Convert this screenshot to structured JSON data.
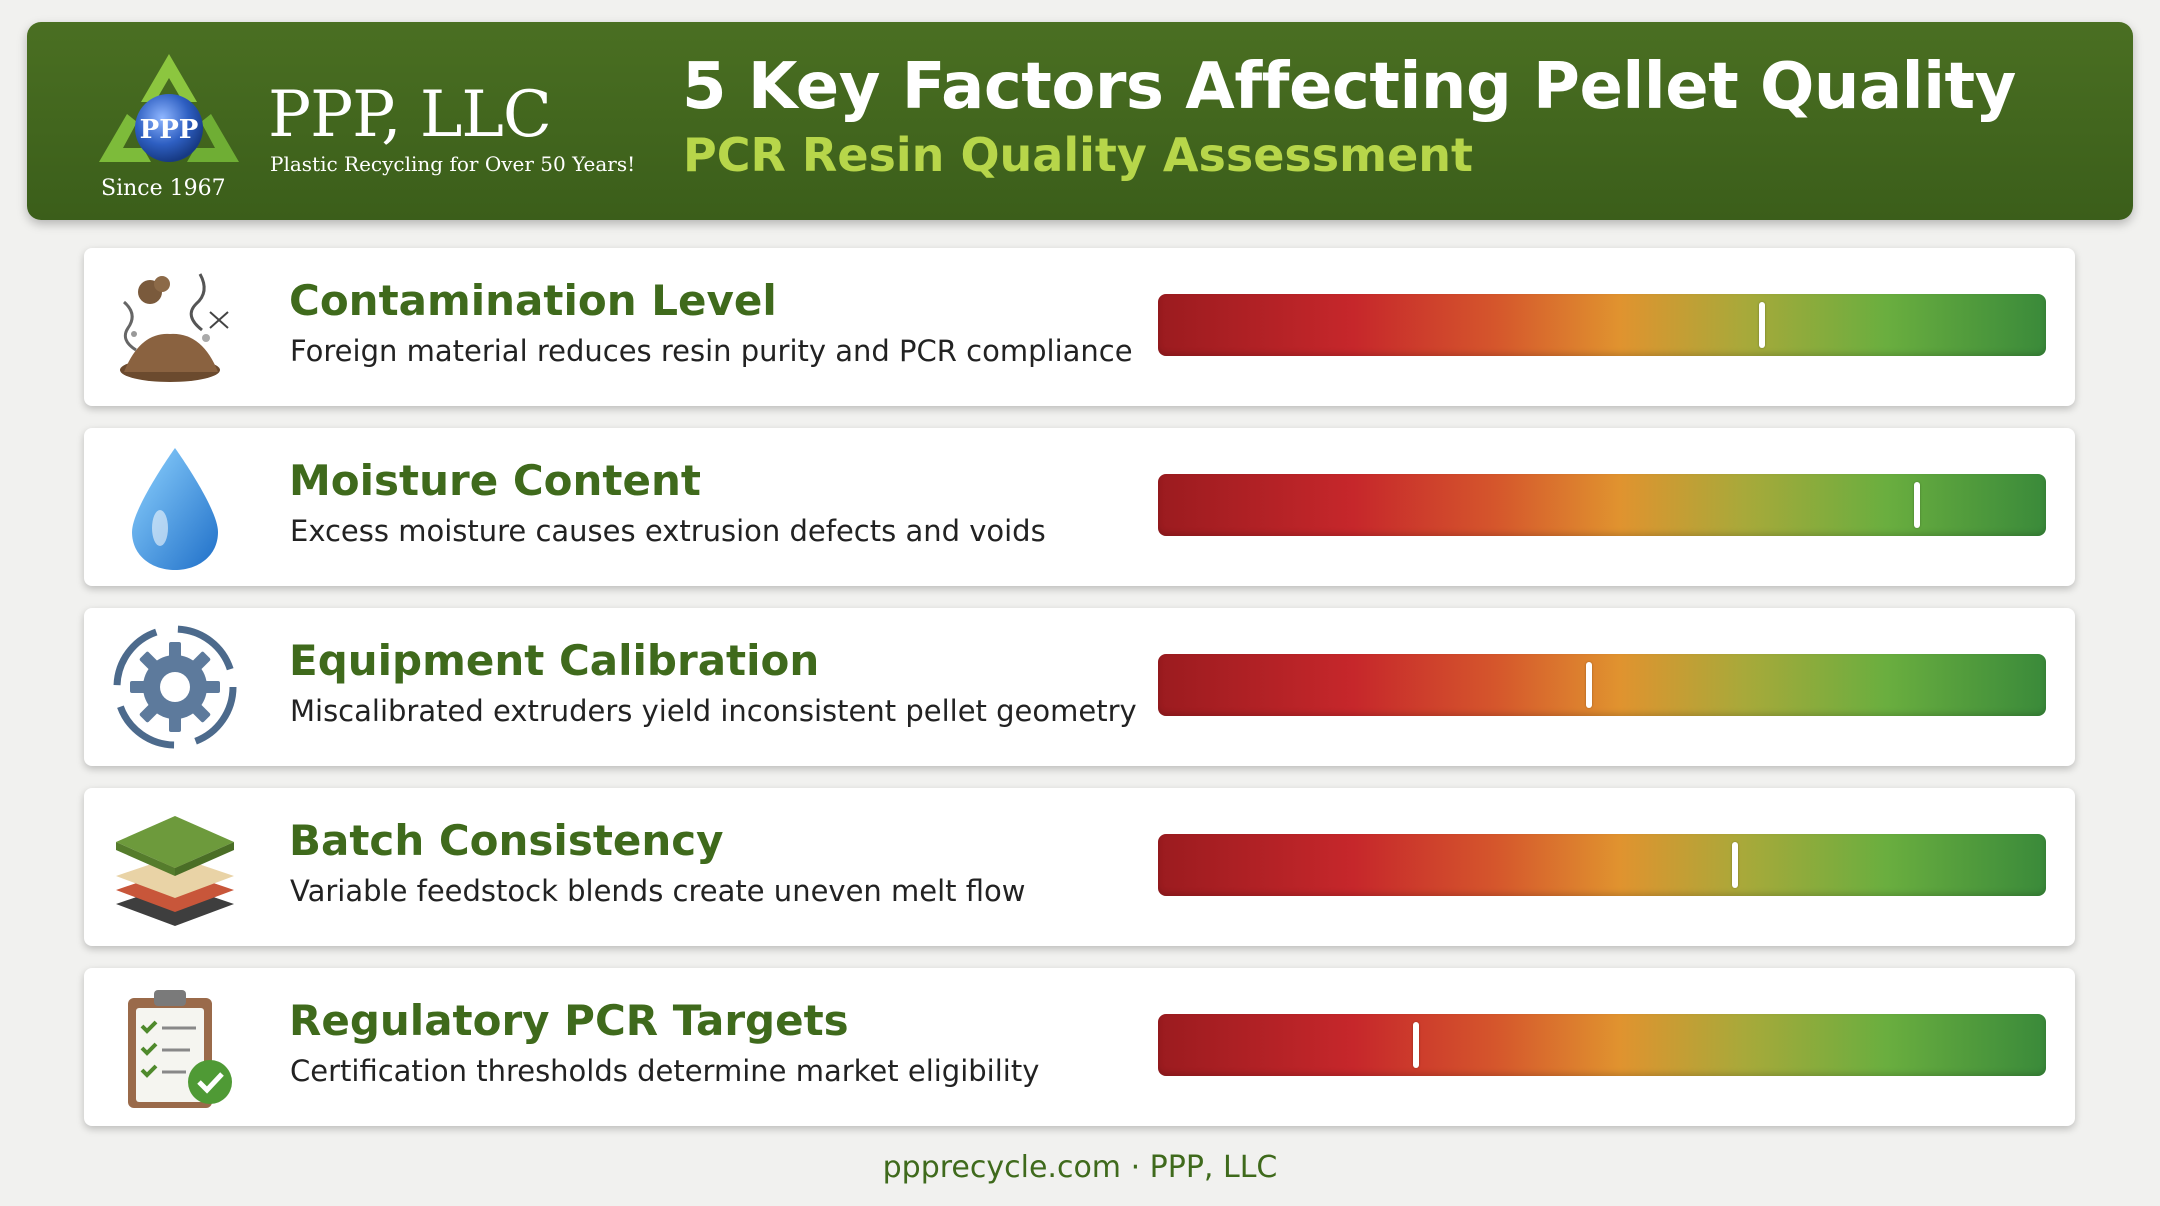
{
  "header": {
    "brand_name": "PPP, LLC",
    "logo_text": "PPP",
    "tagline": "Plastic Recycling for Over 50 Years!",
    "since": "Since 1967",
    "title": "5 Key Factors Affecting Pellet Quality",
    "subtitle": "PCR Resin Quality Assessment"
  },
  "factors": [
    {
      "title": "Contamination Level",
      "description": "Foreign material reduces resin purity and PCR compliance",
      "icon": "contamination-icon",
      "level": 0.68
    },
    {
      "title": "Moisture Content",
      "description": "Excess moisture causes extrusion defects and voids",
      "icon": "water-drop-icon",
      "level": 0.855
    },
    {
      "title": "Equipment Calibration",
      "description": "Miscalibrated extruders yield inconsistent pellet geometry",
      "icon": "gear-icon",
      "level": 0.485
    },
    {
      "title": "Batch Consistency",
      "description": "Variable feedstock blends create uneven melt flow",
      "icon": "layers-icon",
      "level": 0.65
    },
    {
      "title": "Regulatory PCR Targets",
      "description": "Certification thresholds determine market eligibility",
      "icon": "clipboard-check-icon",
      "level": 0.29
    }
  ],
  "colors": {
    "header_green": "#3b5e1a",
    "accent_lime": "#b7d64a",
    "title_green": "#3f6a1c"
  },
  "footer": {
    "text": "ppprecycle.com · PPP, LLC"
  }
}
